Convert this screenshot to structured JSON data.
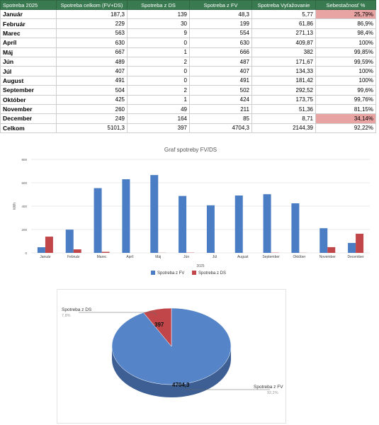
{
  "table": {
    "headers": [
      "Spotreba 2025",
      "Spotreba celkom (FV+DS)",
      "Spotreba z DS",
      "Spotreba z FV",
      "Spotreba Vyťažovanie",
      "Sebestačnosť %"
    ],
    "rows": [
      {
        "month": "Január",
        "total": "187,3",
        "ds": "139",
        "fv": "48,3",
        "vyt": "5,77",
        "pct": "25,79%",
        "hl": true
      },
      {
        "month": "Február",
        "total": "229",
        "ds": "30",
        "fv": "199",
        "vyt": "61,86",
        "pct": "86,9%",
        "hl": false
      },
      {
        "month": "Marec",
        "total": "563",
        "ds": "9",
        "fv": "554",
        "vyt": "271,13",
        "pct": "98,4%",
        "hl": false
      },
      {
        "month": "Apríl",
        "total": "630",
        "ds": "0",
        "fv": "630",
        "vyt": "409,87",
        "pct": "100%",
        "hl": false
      },
      {
        "month": "Máj",
        "total": "667",
        "ds": "1",
        "fv": "666",
        "vyt": "382",
        "pct": "99,85%",
        "hl": false
      },
      {
        "month": "Jún",
        "total": "489",
        "ds": "2",
        "fv": "487",
        "vyt": "171,67",
        "pct": "99,59%",
        "hl": false
      },
      {
        "month": "Júl",
        "total": "407",
        "ds": "0",
        "fv": "407",
        "vyt": "134,33",
        "pct": "100%",
        "hl": false
      },
      {
        "month": "August",
        "total": "491",
        "ds": "0",
        "fv": "491",
        "vyt": "181,42",
        "pct": "100%",
        "hl": false
      },
      {
        "month": "September",
        "total": "504",
        "ds": "2",
        "fv": "502",
        "vyt": "292,52",
        "pct": "99,6%",
        "hl": false
      },
      {
        "month": "Október",
        "total": "425",
        "ds": "1",
        "fv": "424",
        "vyt": "173,75",
        "pct": "99,76%",
        "hl": false
      },
      {
        "month": "November",
        "total": "260",
        "ds": "49",
        "fv": "211",
        "vyt": "51,36",
        "pct": "81,15%",
        "hl": false
      },
      {
        "month": "December",
        "total": "249",
        "ds": "164",
        "fv": "85",
        "vyt": "8,71",
        "pct": "34,14%",
        "hl": true
      }
    ],
    "total": {
      "month": "Celkom",
      "total": "5101,3",
      "ds": "397",
      "fv": "4704,3",
      "vyt": "2144,39",
      "pct": "92,22%"
    },
    "highlight_color": "#e8a3a3",
    "header_color": "#3a7a51"
  },
  "chart_data": [
    {
      "type": "bar",
      "title": "Graf spotreby FV/DS",
      "xlabel": "2025",
      "ylabel": "kWh",
      "ylim": [
        0,
        800
      ],
      "yticks": [
        0,
        200,
        400,
        600,
        800
      ],
      "grid": true,
      "legend": "bottom",
      "categories": [
        "Január",
        "Február",
        "Marec",
        "Apríl",
        "Máj",
        "Jún",
        "Júl",
        "August",
        "September",
        "Október",
        "November",
        "December"
      ],
      "series": [
        {
          "name": "Spotreba z FV",
          "color": "#4a7dc4",
          "values": [
            48.3,
            199,
            554,
            630,
            666,
            487,
            407,
            491,
            502,
            424,
            211,
            85
          ]
        },
        {
          "name": "Spotreba z DS",
          "color": "#c0464a",
          "values": [
            139,
            30,
            9,
            0,
            1,
            2,
            0,
            0,
            2,
            1,
            49,
            164
          ]
        }
      ]
    },
    {
      "type": "pie",
      "slices": [
        {
          "name": "Spotreba z FV",
          "value": 4704.3,
          "label": "4704,3",
          "pct": "92,2%",
          "color": "#5585c8"
        },
        {
          "name": "Spotreba z DS",
          "value": 397,
          "label": "397",
          "pct": "7,8%",
          "color": "#c0464a"
        }
      ]
    }
  ]
}
